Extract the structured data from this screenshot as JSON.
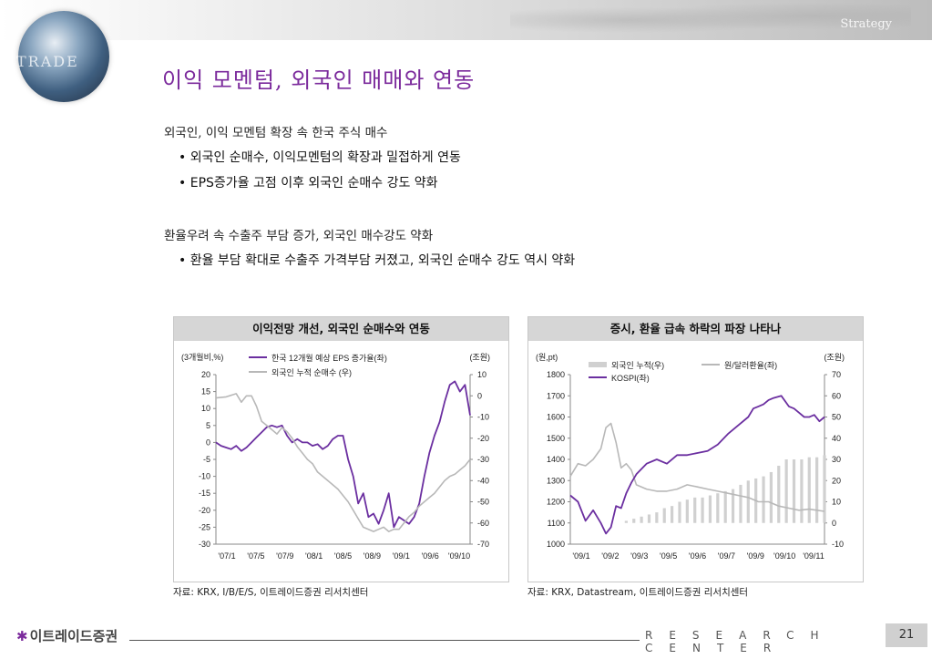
{
  "header": {
    "section": "Strategy",
    "title": "이익 모멘텀, 외국인 매매와 연동"
  },
  "logo": {
    "globe_text": "TRADE"
  },
  "sections": [
    {
      "heading": "외국인, 이익 모멘텀 확장 속 한국 주식 매수",
      "bullets": [
        "외국인 순매수, 이익모멘텀의 확장과 밀접하게 연동",
        "EPS증가율 고점 이후 외국인 순매수 강도 약화"
      ]
    },
    {
      "heading": "환율우려 속 수출주 부담 증가, 외국인 매수강도 약화",
      "bullets": [
        "환율 부담 확대로 수출주 가격부담 커졌고, 외국인 순매수 강도 역시 약화"
      ]
    }
  ],
  "chart_data": [
    {
      "type": "line",
      "title": "이익전망 개선, 외국인 순매수와 연동",
      "left_unit": "(3개월비,%)",
      "right_unit": "(조원)",
      "source": "자료: KRX, I/B/E/S, 이트레이드증권 리서치센터",
      "x_tick_labels": [
        "'07/1",
        "'07/5",
        "'07/9",
        "'08/1",
        "'08/5",
        "'08/9",
        "'09/1",
        "'09/6",
        "'09/10"
      ],
      "left_ticks": [
        20,
        15,
        10,
        5,
        0,
        -5,
        -10,
        -15,
        -20,
        -25,
        -30
      ],
      "right_ticks": [
        10,
        0,
        -10,
        -20,
        -30,
        -40,
        -50,
        -60,
        -70
      ],
      "ylim_left": [
        -30,
        20
      ],
      "ylim_right": [
        -70,
        10
      ],
      "legend": [
        "한국 12개월 예상 EPS 증가율(좌)",
        "외국인 누적 순매수 (우)"
      ],
      "series": [
        {
          "name": "한국 12개월 예상 EPS 증가율(좌)",
          "axis": "left",
          "color": "#6b2fa0",
          "x": [
            0,
            0.02,
            0.04,
            0.06,
            0.08,
            0.1,
            0.12,
            0.14,
            0.16,
            0.18,
            0.2,
            0.22,
            0.24,
            0.26,
            0.28,
            0.3,
            0.32,
            0.34,
            0.36,
            0.38,
            0.4,
            0.42,
            0.44,
            0.46,
            0.48,
            0.5,
            0.52,
            0.54,
            0.56,
            0.58,
            0.6,
            0.62,
            0.64,
            0.66,
            0.68,
            0.7,
            0.72,
            0.74,
            0.76,
            0.78,
            0.8,
            0.82,
            0.84,
            0.86,
            0.88,
            0.9,
            0.92,
            0.94,
            0.96,
            0.98,
            1.0
          ],
          "values": [
            0,
            -1,
            -1.5,
            -2,
            -1,
            -2.5,
            -1.5,
            0,
            1.5,
            3,
            4.5,
            5,
            4.5,
            5,
            2,
            0,
            1,
            0,
            0,
            -1,
            -0.5,
            -2,
            -1,
            1,
            2,
            2,
            -5,
            -10,
            -18,
            -15,
            -22,
            -21,
            -24,
            -20,
            -15,
            -25,
            -22,
            -23,
            -24,
            -22,
            -18,
            -10,
            -3,
            2,
            6,
            12,
            17,
            18,
            15,
            17,
            8
          ]
        },
        {
          "name": "외국인 누적 순매수 (우)",
          "axis": "right",
          "color": "#b8b8b8",
          "x": [
            0,
            0.04,
            0.08,
            0.1,
            0.12,
            0.14,
            0.16,
            0.18,
            0.2,
            0.22,
            0.24,
            0.26,
            0.28,
            0.3,
            0.32,
            0.34,
            0.36,
            0.38,
            0.4,
            0.44,
            0.48,
            0.52,
            0.54,
            0.56,
            0.58,
            0.6,
            0.62,
            0.64,
            0.66,
            0.68,
            0.7,
            0.72,
            0.74,
            0.76,
            0.78,
            0.8,
            0.82,
            0.84,
            0.86,
            0.88,
            0.9,
            0.92,
            0.94,
            0.96,
            0.98,
            1.0
          ],
          "values": [
            -1,
            -0.5,
            1,
            -3,
            0,
            0,
            -5,
            -12,
            -14,
            -16,
            -18,
            -15,
            -17,
            -20,
            -24,
            -27,
            -30,
            -32,
            -36,
            -40,
            -44,
            -50,
            -54,
            -58,
            -62,
            -63,
            -64,
            -63,
            -62,
            -64,
            -63,
            -63,
            -60,
            -57,
            -55,
            -52,
            -50,
            -48,
            -46,
            -43,
            -40,
            -38,
            -37,
            -35,
            -33,
            -30
          ]
        }
      ]
    },
    {
      "type": "line",
      "title": "증시, 환율 급속 하락의 파장 나타나",
      "left_unit": "(원,pt)",
      "right_unit": "(조원)",
      "source": "자료: KRX, Datastream, 이트레이드증권 리서치센터",
      "x_tick_labels": [
        "'09/1",
        "'09/2",
        "'09/3",
        "'09/5",
        "'09/6",
        "'09/7",
        "'09/9",
        "'09/10",
        "'09/11"
      ],
      "left_ticks": [
        1800,
        1700,
        1600,
        1500,
        1400,
        1300,
        1200,
        1100,
        1000
      ],
      "right_ticks": [
        70,
        60,
        50,
        40,
        30,
        20,
        10,
        0,
        -10
      ],
      "ylim_left": [
        1000,
        1800
      ],
      "ylim_right": [
        -10,
        70
      ],
      "legend": [
        "외국인 누적(우)",
        "원/달러환율(좌)",
        "KOSPI(좌)"
      ],
      "bars": {
        "name": "외국인 누적(우)",
        "color": "#d0d0d0",
        "x": [
          0.22,
          0.25,
          0.28,
          0.31,
          0.34,
          0.37,
          0.4,
          0.43,
          0.46,
          0.49,
          0.52,
          0.55,
          0.58,
          0.61,
          0.64,
          0.67,
          0.7,
          0.73,
          0.76,
          0.79,
          0.82,
          0.85,
          0.88,
          0.91,
          0.94,
          0.97,
          1.0
        ],
        "values": [
          1,
          2,
          3,
          4,
          5,
          7,
          8,
          10,
          11,
          12,
          12,
          13,
          14,
          15,
          16,
          18,
          20,
          21,
          22,
          24,
          27,
          30,
          30,
          30,
          31,
          31,
          32
        ]
      },
      "series": [
        {
          "name": "원/달러환율(좌)",
          "axis": "left",
          "color": "#b8b8b8",
          "x": [
            0,
            0.03,
            0.06,
            0.09,
            0.12,
            0.14,
            0.16,
            0.18,
            0.2,
            0.22,
            0.24,
            0.26,
            0.3,
            0.34,
            0.38,
            0.42,
            0.46,
            0.5,
            0.54,
            0.58,
            0.62,
            0.66,
            0.7,
            0.74,
            0.78,
            0.82,
            0.86,
            0.9,
            0.94,
            0.97,
            1.0
          ],
          "values": [
            1320,
            1380,
            1370,
            1400,
            1450,
            1550,
            1570,
            1480,
            1360,
            1380,
            1350,
            1280,
            1260,
            1250,
            1250,
            1260,
            1280,
            1270,
            1260,
            1250,
            1240,
            1230,
            1220,
            1200,
            1200,
            1180,
            1170,
            1160,
            1165,
            1160,
            1155
          ]
        },
        {
          "name": "KOSPI(좌)",
          "axis": "left",
          "color": "#6b2fa0",
          "x": [
            0,
            0.03,
            0.06,
            0.09,
            0.12,
            0.14,
            0.16,
            0.18,
            0.2,
            0.22,
            0.24,
            0.26,
            0.3,
            0.34,
            0.38,
            0.42,
            0.46,
            0.5,
            0.54,
            0.58,
            0.62,
            0.66,
            0.7,
            0.72,
            0.74,
            0.76,
            0.78,
            0.8,
            0.83,
            0.86,
            0.88,
            0.9,
            0.92,
            0.94,
            0.96,
            0.98,
            1.0
          ],
          "values": [
            1230,
            1200,
            1110,
            1160,
            1100,
            1050,
            1080,
            1180,
            1170,
            1240,
            1290,
            1330,
            1380,
            1400,
            1380,
            1420,
            1420,
            1430,
            1440,
            1470,
            1520,
            1560,
            1600,
            1640,
            1650,
            1660,
            1680,
            1690,
            1700,
            1650,
            1640,
            1620,
            1600,
            1600,
            1610,
            1580,
            1600
          ]
        }
      ]
    }
  ],
  "footer": {
    "company": "이트레이드증권",
    "center": "RESEARCH CENTER",
    "page": "21"
  }
}
